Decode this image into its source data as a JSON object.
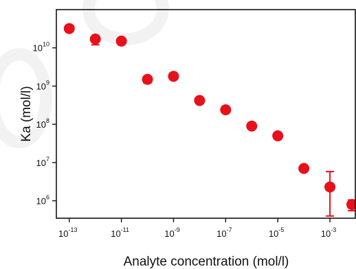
{
  "chart_data": {
    "type": "scatter",
    "title": "",
    "xlabel": "Analyte concentration (mol/l)",
    "ylabel": "Ka (mol/l)",
    "x_scale": "log",
    "y_scale": "log",
    "xlim": [
      3.2e-14,
      0.01
    ],
    "ylim": [
      350000,
      100000000000
    ],
    "x_ticks": [
      1e-13,
      1e-11,
      1e-09,
      1e-07,
      1e-05,
      0.001
    ],
    "x_tick_labels": [
      {
        "base": "10",
        "exp": "-13"
      },
      {
        "base": "10",
        "exp": "-11"
      },
      {
        "base": "10",
        "exp": "-9"
      },
      {
        "base": "10",
        "exp": "-7"
      },
      {
        "base": "10",
        "exp": "-5"
      },
      {
        "base": "10",
        "exp": "-3"
      }
    ],
    "y_ticks": [
      1000000,
      10000000,
      100000000,
      1000000000,
      10000000000
    ],
    "y_tick_labels": [
      {
        "base": "10",
        "exp": "6"
      },
      {
        "base": "10",
        "exp": "7"
      },
      {
        "base": "10",
        "exp": "8"
      },
      {
        "base": "10",
        "exp": "9"
      },
      {
        "base": "10",
        "exp": "10"
      }
    ],
    "grid": false,
    "marker_color": "#e8101a",
    "points": [
      {
        "x": 1e-13,
        "y": 32000000000,
        "err_low": 27000000000,
        "err_high": 37000000000
      },
      {
        "x": 1e-12,
        "y": 17000000000,
        "err_low": 12000000000,
        "err_high": 20000000000
      },
      {
        "x": 1e-11,
        "y": 15000000000
      },
      {
        "x": 1e-10,
        "y": 1500000000,
        "err_low": 1200000000,
        "err_high": 1700000000
      },
      {
        "x": 1e-09,
        "y": 1800000000
      },
      {
        "x": 1e-08,
        "y": 420000000
      },
      {
        "x": 1e-07,
        "y": 240000000
      },
      {
        "x": 1e-06,
        "y": 90000000
      },
      {
        "x": 1e-05,
        "y": 50000000
      },
      {
        "x": 0.0001,
        "y": 7000000
      },
      {
        "x": 0.001,
        "y": 2300000,
        "err_low": 400000,
        "err_high": 5800000
      },
      {
        "x": 0.01,
        "y": 800000,
        "err_low": 550000,
        "err_high": 1050000
      }
    ]
  }
}
